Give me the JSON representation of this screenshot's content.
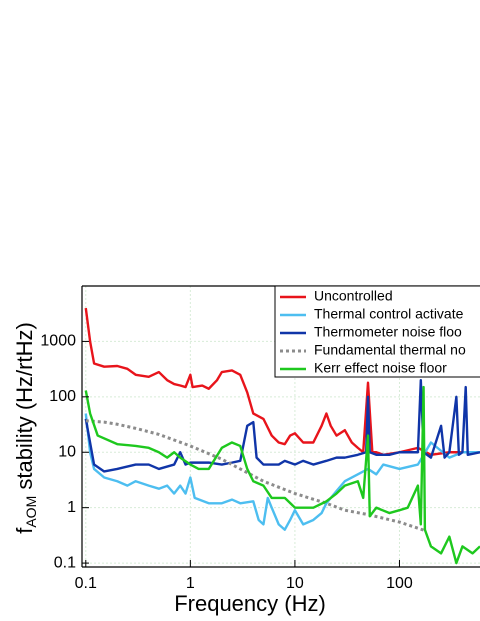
{
  "chart_data": {
    "type": "line",
    "xlabel": "Frequency (Hz)",
    "ylabel": {
      "base": "f",
      "subscript": "AOM",
      "rest": " stability (Hz/rtHz)"
    },
    "xscale": "log",
    "yscale": "log",
    "grid": true,
    "legend_position": "upper right",
    "xlim": [
      0.092,
      589
    ],
    "ylim": [
      0.085,
      10000
    ],
    "xticks": [
      0.1,
      1,
      10,
      100
    ],
    "yticks": [
      0.1,
      1,
      10,
      100,
      1000
    ],
    "series": [
      {
        "name": "Uncontrolled",
        "color": "#e8141b",
        "style": "solid",
        "x": [
          0.1,
          0.11,
          0.12,
          0.15,
          0.2,
          0.25,
          0.3,
          0.4,
          0.5,
          0.6,
          0.7,
          0.8,
          0.9,
          1.0,
          1.05,
          1.3,
          1.5,
          1.8,
          2,
          2.5,
          3,
          3.5,
          4,
          5,
          6,
          7,
          8,
          9,
          10,
          12,
          15,
          18,
          20,
          22,
          25,
          30,
          35,
          40,
          45,
          50,
          55,
          60,
          70,
          100,
          150,
          200,
          300,
          400,
          500,
          589
        ],
        "values": [
          4000,
          1000,
          400,
          350,
          360,
          320,
          250,
          230,
          280,
          200,
          170,
          160,
          150,
          250,
          150,
          160,
          140,
          200,
          280,
          300,
          250,
          120,
          50,
          40,
          20,
          15,
          14,
          20,
          22,
          15,
          15,
          30,
          50,
          30,
          20,
          25,
          15,
          12,
          10,
          180,
          10,
          10,
          9,
          10,
          12,
          9,
          10,
          10,
          10,
          10
        ]
      },
      {
        "name": "Thermal control activate",
        "color": "#4dbef0",
        "style": "solid",
        "x": [
          0.1,
          0.11,
          0.12,
          0.15,
          0.2,
          0.25,
          0.3,
          0.4,
          0.5,
          0.6,
          0.7,
          0.8,
          0.9,
          1,
          1.1,
          1.5,
          2,
          2.5,
          3,
          4,
          4.5,
          5,
          5.5,
          6,
          7,
          8,
          9,
          10,
          12,
          15,
          18,
          20,
          25,
          30,
          40,
          50,
          60,
          70,
          100,
          150,
          200,
          300,
          400,
          589
        ],
        "values": [
          50,
          10,
          5,
          3.5,
          3,
          2.5,
          3,
          2.5,
          2.2,
          2.5,
          1.8,
          2.5,
          1.8,
          3.5,
          1.5,
          1.2,
          1.2,
          1.4,
          1.2,
          1.3,
          0.6,
          0.5,
          1.5,
          1,
          0.5,
          0.4,
          0.6,
          0.9,
          0.5,
          0.6,
          0.8,
          1.2,
          2,
          3,
          4,
          5,
          4,
          6,
          5,
          6,
          15,
          8,
          10,
          10
        ]
      },
      {
        "name": "Thermometer noise floo",
        "color": "#1035a8",
        "style": "solid",
        "x": [
          0.1,
          0.12,
          0.15,
          0.2,
          0.3,
          0.4,
          0.5,
          0.7,
          0.8,
          0.9,
          1,
          1.5,
          2,
          2.5,
          3,
          3.5,
          4,
          4.3,
          5,
          7,
          8,
          10,
          12,
          15,
          20,
          25,
          30,
          40,
          48,
          50,
          52,
          60,
          80,
          100,
          150,
          160,
          170,
          200,
          250,
          270,
          300,
          350,
          370,
          400,
          430,
          450,
          589
        ],
        "values": [
          40,
          6,
          4.5,
          5,
          6,
          6,
          5,
          6,
          10,
          6,
          6.5,
          6.5,
          6,
          6.5,
          7,
          30,
          35,
          8,
          6,
          6,
          7,
          6,
          7,
          6,
          7,
          8,
          8,
          9,
          10,
          100,
          10,
          9,
          9,
          10,
          10,
          200,
          10,
          8,
          30,
          8,
          10,
          100,
          9,
          10,
          150,
          9,
          10
        ]
      },
      {
        "name": "Fundamental thermal no",
        "color": "#8c8c8c",
        "style": "dotted",
        "x": [
          0.1,
          0.15,
          0.2,
          0.3,
          0.5,
          1,
          2,
          3,
          5,
          10,
          20,
          30,
          50,
          100,
          180
        ],
        "values": [
          37,
          35,
          32,
          27,
          21,
          13,
          7.5,
          5,
          3,
          1.8,
          1.2,
          0.9,
          0.75,
          0.55,
          0.38
        ]
      },
      {
        "name": "Kerr effect noise floor",
        "color": "#1ec81e",
        "style": "solid",
        "x": [
          0.1,
          0.11,
          0.13,
          0.2,
          0.3,
          0.4,
          0.5,
          0.6,
          0.7,
          0.8,
          1,
          1.2,
          1.5,
          2,
          2.5,
          3,
          3.5,
          4,
          5,
          6,
          8,
          10,
          12,
          15,
          20,
          25,
          30,
          40,
          45,
          50,
          52,
          60,
          80,
          100,
          120,
          150,
          160,
          170,
          175,
          200,
          250,
          300,
          350,
          400,
          500,
          589
        ],
        "values": [
          130,
          50,
          20,
          14,
          13,
          12,
          10,
          8,
          10,
          8,
          6,
          5,
          5,
          12,
          15,
          13,
          5,
          3,
          2.5,
          1.5,
          1.5,
          1,
          1,
          1,
          1.3,
          1.8,
          2.5,
          3,
          1.5,
          20,
          0.7,
          1,
          0.8,
          0.9,
          1,
          2.5,
          0.5,
          150,
          0.4,
          0.2,
          0.15,
          0.3,
          0.1,
          0.2,
          0.15,
          0.2
        ]
      }
    ]
  }
}
